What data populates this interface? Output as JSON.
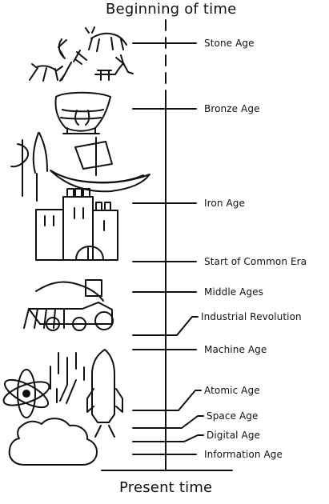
{
  "header": {
    "title": "Beginning of time"
  },
  "footer": {
    "title": "Present time"
  },
  "eras": [
    {
      "label": "Stone Age"
    },
    {
      "label": "Bronze Age"
    },
    {
      "label": "Iron Age"
    },
    {
      "label": "Start of Common Era"
    },
    {
      "label": "Middle Ages"
    },
    {
      "label": "Industrial Revolution"
    },
    {
      "label": "Machine Age"
    },
    {
      "label": "Atomic Age"
    },
    {
      "label": "Space Age"
    },
    {
      "label": "Digital Age"
    },
    {
      "label": "Information Age"
    }
  ]
}
